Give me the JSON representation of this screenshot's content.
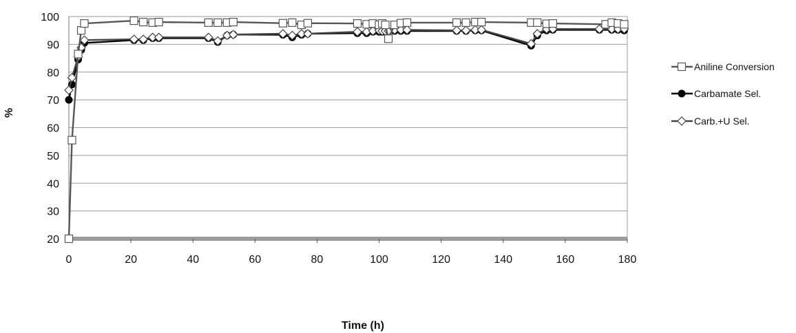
{
  "chart_data": {
    "type": "line",
    "xlabel": "Time (h)",
    "ylabel": "%",
    "xlim": [
      0,
      180
    ],
    "ylim": [
      20,
      100
    ],
    "xticks": [
      0,
      20,
      40,
      60,
      80,
      100,
      120,
      140,
      160,
      180
    ],
    "yticks": [
      20,
      30,
      40,
      50,
      60,
      70,
      80,
      90,
      100
    ],
    "grid": "horizontal",
    "legend_position": "right",
    "series": [
      {
        "name": "Aniline Conversion",
        "marker": "square",
        "color": "#555555",
        "x": [
          0,
          1,
          3,
          4,
          5,
          21,
          24,
          27,
          29,
          45,
          48,
          51,
          53,
          69,
          72,
          75,
          77,
          93,
          96,
          98,
          100,
          101,
          102,
          103,
          105,
          107,
          109,
          125,
          128,
          131,
          133,
          149,
          151,
          154,
          156,
          173,
          175,
          177,
          179
        ],
        "y": [
          20,
          55.5,
          86.5,
          95,
          97.5,
          98.5,
          98,
          97.8,
          98,
          97.8,
          97.8,
          97.8,
          98,
          97.6,
          97.8,
          97,
          97.6,
          97.5,
          97.2,
          97.5,
          97,
          97.5,
          97,
          92,
          97,
          97.6,
          97.8,
          97.8,
          97.8,
          98,
          98,
          97.8,
          97.8,
          97.4,
          97.5,
          97.2,
          97.8,
          97.5,
          97.2
        ]
      },
      {
        "name": "Carbamate Sel.",
        "marker": "circle",
        "color": "#000000",
        "x": [
          0,
          1,
          3,
          4,
          5,
          21,
          24,
          27,
          29,
          45,
          48,
          51,
          53,
          69,
          72,
          75,
          77,
          93,
          96,
          98,
          100,
          101,
          102,
          103,
          105,
          107,
          109,
          125,
          128,
          131,
          133,
          149,
          151,
          154,
          156,
          171,
          175,
          177,
          179
        ],
        "y": [
          70,
          75.5,
          84.5,
          88,
          90.5,
          91.5,
          91.5,
          92.2,
          92.2,
          92.2,
          90.8,
          93.2,
          93.5,
          93.4,
          92.5,
          93.4,
          93.8,
          94,
          94,
          94.5,
          94.5,
          94.5,
          94.5,
          94.5,
          94.8,
          94.8,
          94.8,
          94.8,
          94.8,
          95,
          95,
          89.5,
          93.2,
          95,
          95.2,
          95.2,
          95.2,
          95.2,
          95
        ]
      },
      {
        "name": "Carb.+U Sel.",
        "marker": "diamond",
        "color": "#444444",
        "x": [
          0,
          1,
          3,
          4,
          5,
          21,
          24,
          27,
          29,
          45,
          48,
          51,
          53,
          69,
          72,
          75,
          77,
          93,
          96,
          98,
          100,
          101,
          102,
          103,
          105,
          107,
          109,
          125,
          128,
          131,
          133,
          149,
          151,
          154,
          156,
          171,
          175,
          177,
          179
        ],
        "y": [
          73.5,
          78,
          85.5,
          88.8,
          91.5,
          91.8,
          91.8,
          92.5,
          92.5,
          92.5,
          91.2,
          93.2,
          93.5,
          93.8,
          93.2,
          93.8,
          93.8,
          94.5,
          94.5,
          94.8,
          95,
          94.8,
          94.8,
          94.8,
          95.2,
          95.2,
          95.2,
          95,
          95,
          95.2,
          95.2,
          90.2,
          93.8,
          95.5,
          95.5,
          95.5,
          95.5,
          95.5,
          95.5
        ]
      }
    ]
  }
}
